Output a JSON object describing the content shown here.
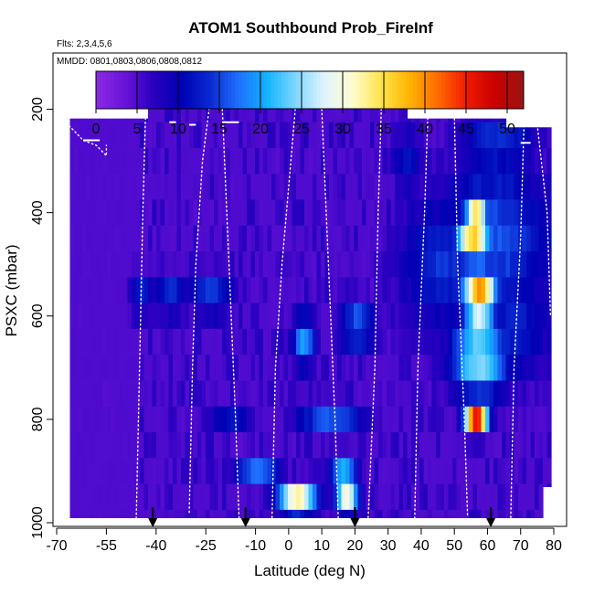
{
  "chart_data": {
    "type": "heatmap",
    "title": "ATOM1 Southbound Prob_FireInf",
    "subtitle_flights": "Flts: 2,3,4,5,6",
    "subtitle_dates": "MMDD: 0801,0803,0806,0808,0812",
    "xlabel": "Latitude (deg N)",
    "ylabel": "PSXC (mbar)",
    "xlim": [
      -70,
      80
    ],
    "ylim": [
      1000,
      100
    ],
    "x_ticks": [
      -70,
      -55,
      -40,
      -25,
      -10,
      0,
      10,
      20,
      30,
      40,
      50,
      60,
      70,
      80
    ],
    "x_tick_labels": [
      "-70",
      "-55",
      "-40",
      "-25",
      "-10",
      "0",
      "10",
      "20",
      "30",
      "40",
      "50",
      "60",
      "70",
      "80"
    ],
    "y_ticks": [
      200,
      400,
      600,
      800,
      1000
    ],
    "y_tick_labels": [
      "200",
      "400",
      "600",
      "800",
      "1000"
    ],
    "colorbar": {
      "min": 0,
      "max": 52,
      "ticks": [
        0,
        5,
        10,
        15,
        20,
        25,
        30,
        35,
        40,
        45,
        50
      ],
      "tick_labels": [
        "0",
        "5",
        "10",
        "15",
        "20",
        "25",
        "30",
        "35",
        "40",
        "45",
        "50"
      ],
      "colors": [
        "#8a2be2",
        "#6a14d8",
        "#2a00c0",
        "#0000b4",
        "#0a2ad0",
        "#1f6fff",
        "#12b4ff",
        "#7fd6ff",
        "#e0f4ff",
        "#fffbd0",
        "#ffe44a",
        "#ffb400",
        "#ff6a00",
        "#f01a00",
        "#c80000",
        "#9a1414"
      ]
    },
    "domain_lat": [
      -66,
      79
    ],
    "top_pressure_south": 218,
    "top_pressure_center": 168,
    "center_lat_range": [
      -43,
      35
    ],
    "pressure_levels": [
      200,
      250,
      300,
      350,
      400,
      450,
      500,
      550,
      600,
      650,
      700,
      750,
      800,
      850,
      900,
      950,
      1000
    ],
    "background_value": 4,
    "hotspots": [
      {
        "lat": 2,
        "p": 950,
        "value": 32,
        "w": 7,
        "h": 35
      },
      {
        "lat": 17,
        "p": 950,
        "value": 30,
        "w": 4,
        "h": 30
      },
      {
        "lat": -10,
        "p": 900,
        "value": 18,
        "w": 8,
        "h": 35
      },
      {
        "lat": 16,
        "p": 900,
        "value": 20,
        "w": 5,
        "h": 35
      },
      {
        "lat": -18,
        "p": 800,
        "value": 12,
        "w": 8,
        "h": 40
      },
      {
        "lat": 12,
        "p": 800,
        "value": 16,
        "w": 12,
        "h": 40
      },
      {
        "lat": 4,
        "p": 650,
        "value": 20,
        "w": 4,
        "h": 60
      },
      {
        "lat": 20,
        "p": 620,
        "value": 17,
        "w": 6,
        "h": 60
      },
      {
        "lat": -36,
        "p": 560,
        "value": 14,
        "w": 6,
        "h": 50
      },
      {
        "lat": -45,
        "p": 560,
        "value": 14,
        "w": 4,
        "h": 50
      },
      {
        "lat": -24,
        "p": 560,
        "value": 15,
        "w": 8,
        "h": 50
      },
      {
        "lat": 57,
        "p": 560,
        "value": 40,
        "w": 6,
        "h": 70
      },
      {
        "lat": 55,
        "p": 450,
        "value": 36,
        "w": 6,
        "h": 60
      },
      {
        "lat": 56,
        "p": 390,
        "value": 38,
        "w": 4,
        "h": 40
      },
      {
        "lat": 56,
        "p": 800,
        "value": 47,
        "w": 4,
        "h": 35
      },
      {
        "lat": 57,
        "p": 680,
        "value": 26,
        "w": 10,
        "h": 90
      },
      {
        "lat": 62,
        "p": 450,
        "value": 16,
        "w": 20,
        "h": 180
      },
      {
        "lat": 46,
        "p": 500,
        "value": 14,
        "w": 16,
        "h": 160
      },
      {
        "lat": 62,
        "p": 270,
        "value": 16,
        "w": 14,
        "h": 50
      },
      {
        "lat": 35,
        "p": 300,
        "value": 11,
        "w": 6,
        "h": 80
      },
      {
        "lat": 67,
        "p": 620,
        "value": 13,
        "w": 14,
        "h": 140
      }
    ],
    "flight_tracks": [
      {
        "lat": [
          -68,
          -65,
          -62,
          -62,
          -58,
          -55,
          -55
        ],
        "p": [
          220,
          240,
          260,
          260,
          270,
          290,
          270
        ]
      },
      {
        "lat": [
          -46,
          -45,
          -44,
          -43
        ],
        "p": [
          1000,
          700,
          400,
          170
        ]
      },
      {
        "lat": [
          -30,
          -29,
          -28,
          -26,
          -24
        ],
        "p": [
          980,
          700,
          500,
          300,
          200
        ]
      },
      {
        "lat": [
          -20,
          -18,
          -16,
          -15
        ],
        "p": [
          200,
          500,
          800,
          990
        ]
      },
      {
        "lat": [
          -5,
          -4,
          -2,
          0,
          2
        ],
        "p": [
          990,
          700,
          500,
          350,
          200
        ]
      },
      {
        "lat": [
          10,
          12,
          14,
          15
        ],
        "p": [
          200,
          500,
          800,
          1000
        ]
      },
      {
        "lat": [
          24,
          26,
          27,
          28
        ],
        "p": [
          990,
          700,
          400,
          190
        ]
      },
      {
        "lat": [
          38,
          39,
          41,
          42
        ],
        "p": [
          1000,
          700,
          400,
          210
        ]
      },
      {
        "lat": [
          50,
          51,
          53,
          54
        ],
        "p": [
          210,
          500,
          800,
          990
        ]
      },
      {
        "lat": [
          67,
          68,
          70,
          71
        ],
        "p": [
          990,
          700,
          450,
          230
        ]
      },
      {
        "lat": [
          75,
          78,
          79
        ],
        "p": [
          230,
          400,
          600
        ]
      }
    ],
    "white_segments": [
      {
        "lat": [
          -36,
          -34
        ],
        "p": 225
      },
      {
        "lat": [
          -20,
          -15
        ],
        "p": 225
      },
      {
        "lat": [
          -30,
          -28
        ],
        "p": 230
      },
      {
        "lat": [
          70,
          73
        ],
        "p": 265
      },
      {
        "lat": [
          -62,
          -57
        ],
        "p": 260
      }
    ],
    "arrows_lat": [
      -41,
      -13,
      20,
      61
    ]
  }
}
